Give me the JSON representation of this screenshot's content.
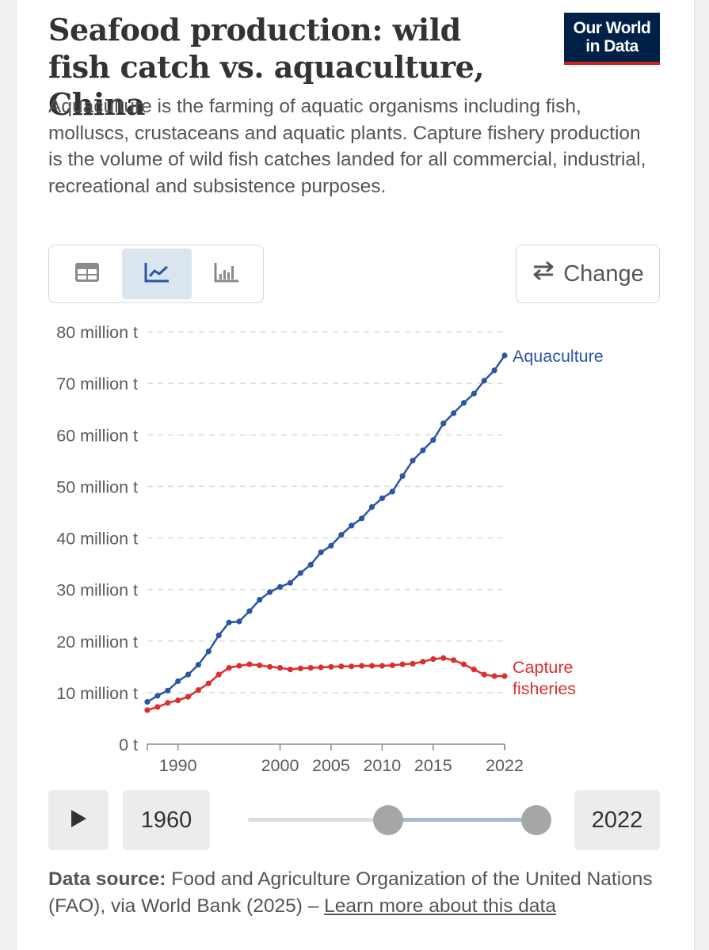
{
  "header": {
    "title": "Seafood production: wild fish catch vs. aquaculture, China",
    "logo_line1": "Our World",
    "logo_line2": "in Data",
    "subtitle": "Aquaculture is the farming of aquatic organisms including fish, molluscs, crustaceans and aquatic plants. Capture fishery production is the volume of wild fish catches landed for all commercial, industrial, recreational and subsistence purposes."
  },
  "toolbar": {
    "tabs": [
      {
        "icon": "table-icon",
        "active": false
      },
      {
        "icon": "line-chart-icon",
        "active": true
      },
      {
        "icon": "bar-chart-icon",
        "active": false
      }
    ],
    "change_label": "Change",
    "change_icon": "swap-arrows-icon"
  },
  "colors": {
    "aquaculture": "#2c55a6",
    "capture": "#dd2e2e",
    "logo_bg": "#002147",
    "logo_accent": "#ce261e"
  },
  "chart_data": {
    "type": "line",
    "title": "Seafood production: wild fish catch vs. aquaculture, China",
    "xlabel": "",
    "ylabel": "",
    "xlim": [
      1987,
      2022
    ],
    "ylim": [
      0,
      80000000
    ],
    "y_ticks": [
      {
        "value": 0,
        "label": "0 t"
      },
      {
        "value": 10000000,
        "label": "10 million t"
      },
      {
        "value": 20000000,
        "label": "20 million t"
      },
      {
        "value": 30000000,
        "label": "30 million t"
      },
      {
        "value": 40000000,
        "label": "40 million t"
      },
      {
        "value": 50000000,
        "label": "50 million t"
      },
      {
        "value": 60000000,
        "label": "60 million t"
      },
      {
        "value": 70000000,
        "label": "70 million t"
      },
      {
        "value": 80000000,
        "label": "80 million t"
      }
    ],
    "x_ticks": [
      {
        "value": 1990,
        "label": "1990"
      },
      {
        "value": 2000,
        "label": "2000"
      },
      {
        "value": 2005,
        "label": "2005"
      },
      {
        "value": 2010,
        "label": "2010"
      },
      {
        "value": 2015,
        "label": "2015"
      },
      {
        "value": 2022,
        "label": "2022"
      }
    ],
    "grid": "horizontal dashed",
    "legend": "inline labels at line ends",
    "x": [
      1987,
      1988,
      1989,
      1990,
      1991,
      1992,
      1993,
      1994,
      1995,
      1996,
      1997,
      1998,
      1999,
      2000,
      2001,
      2002,
      2003,
      2004,
      2005,
      2006,
      2007,
      2008,
      2009,
      2010,
      2011,
      2012,
      2013,
      2014,
      2015,
      2016,
      2017,
      2018,
      2019,
      2020,
      2021,
      2022
    ],
    "series": [
      {
        "name": "Aquaculture",
        "color": "#2c55a6",
        "values": [
          8.2,
          9.4,
          10.4,
          12.2,
          13.5,
          15.4,
          18.0,
          21.1,
          23.6,
          23.8,
          25.8,
          28.0,
          29.5,
          30.5,
          31.3,
          33.2,
          34.8,
          37.2,
          38.5,
          40.6,
          42.4,
          43.8,
          46.0,
          47.7,
          49.0,
          52.0,
          55.0,
          57.0,
          59.0,
          62.2,
          64.2,
          66.2,
          68.0,
          70.5,
          72.5,
          75.4
        ]
      },
      {
        "name": "Capture fisheries",
        "label_lines": [
          "Capture",
          "fisheries"
        ],
        "color": "#dd2e2e",
        "values": [
          6.6,
          7.2,
          8.0,
          8.5,
          9.2,
          10.5,
          11.8,
          13.5,
          14.8,
          15.2,
          15.5,
          15.3,
          15.0,
          14.8,
          14.5,
          14.7,
          14.8,
          14.9,
          15.0,
          15.1,
          15.1,
          15.2,
          15.2,
          15.2,
          15.3,
          15.5,
          15.6,
          16.0,
          16.5,
          16.7,
          16.3,
          15.5,
          14.5,
          13.5,
          13.2,
          13.2
        ]
      }
    ],
    "value_unit": "million t"
  },
  "controls": {
    "play_icon": "play-icon",
    "start_year": "1960",
    "end_year": "2022"
  },
  "source": {
    "label": "Data source:",
    "text": " Food and Agriculture Organization of the United Nations (FAO), via World Bank (2025) – ",
    "link": "Learn more about this data"
  }
}
